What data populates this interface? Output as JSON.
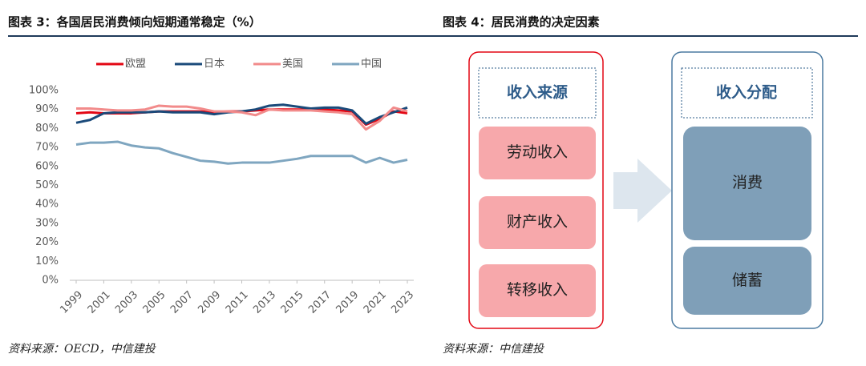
{
  "figures": [
    {
      "title": "图表 3：各国居民消费倾向短期通常稳定（%）",
      "source": "资料来源：OECD，中信建投"
    },
    {
      "title": "图表 4：居民消费的决定因素",
      "source": "资料来源：中信建投"
    }
  ],
  "chart_data": {
    "type": "line",
    "x": [
      1999,
      2000,
      2001,
      2002,
      2003,
      2004,
      2005,
      2006,
      2007,
      2008,
      2009,
      2010,
      2011,
      2012,
      2013,
      2014,
      2015,
      2016,
      2017,
      2018,
      2019,
      2020,
      2021,
      2022,
      2023
    ],
    "xlim": [
      1999,
      2023
    ],
    "xticks": [
      1999,
      2001,
      2003,
      2005,
      2007,
      2009,
      2011,
      2013,
      2015,
      2017,
      2019,
      2021,
      2023
    ],
    "ylim": [
      0,
      100
    ],
    "yticks": [
      {
        "value": 0,
        "label": "0%"
      },
      {
        "value": 10,
        "label": "10%"
      },
      {
        "value": 20,
        "label": "20%"
      },
      {
        "value": 30,
        "label": "30%"
      },
      {
        "value": 40,
        "label": "40%"
      },
      {
        "value": 50,
        "label": "50%"
      },
      {
        "value": 60,
        "label": "60%"
      },
      {
        "value": 70,
        "label": "70%"
      },
      {
        "value": 80,
        "label": "80%"
      },
      {
        "value": 90,
        "label": "90%"
      },
      {
        "value": 100,
        "label": "100%"
      }
    ],
    "legend": "top",
    "series": [
      {
        "name": "欧盟",
        "color": "#e30613",
        "values": [
          88,
          88.5,
          88,
          88,
          88,
          88.5,
          89,
          89,
          89,
          89,
          88.5,
          89,
          89,
          89.5,
          90,
          90,
          90,
          90,
          90,
          89.5,
          89,
          82,
          85,
          89,
          88
        ]
      },
      {
        "name": "日本",
        "color": "#1a4a7a",
        "values": [
          83,
          84.5,
          88,
          88.5,
          88.5,
          88.5,
          89,
          88.5,
          88.5,
          88.5,
          87.5,
          88.5,
          89,
          90,
          92,
          92.5,
          91.5,
          90.5,
          91,
          91,
          89.5,
          82.5,
          86,
          88.5,
          91
        ]
      },
      {
        "name": "美国",
        "color": "#f28b8b",
        "values": [
          90.5,
          90.5,
          90,
          89.5,
          89.5,
          90,
          92,
          91.5,
          91.5,
          90.5,
          89,
          89,
          88.5,
          87,
          90,
          89.5,
          89.5,
          89.5,
          89,
          88.5,
          87.5,
          79.5,
          84,
          91,
          89
        ]
      },
      {
        "name": "中国",
        "color": "#7fa6c0",
        "values": [
          71.5,
          72.5,
          72.5,
          73,
          71,
          70,
          69.5,
          67,
          65,
          63,
          62.5,
          61.5,
          62,
          62,
          62,
          63,
          64,
          65.5,
          65.5,
          65.5,
          65.5,
          62,
          64.5,
          62,
          63.5
        ]
      }
    ]
  },
  "diagram": {
    "left": {
      "title": "收入来源",
      "items": [
        "劳动收入",
        "财产收入",
        "转移收入"
      ]
    },
    "right": {
      "title": "收入分配",
      "items": [
        "消费",
        "储蓄"
      ]
    }
  }
}
